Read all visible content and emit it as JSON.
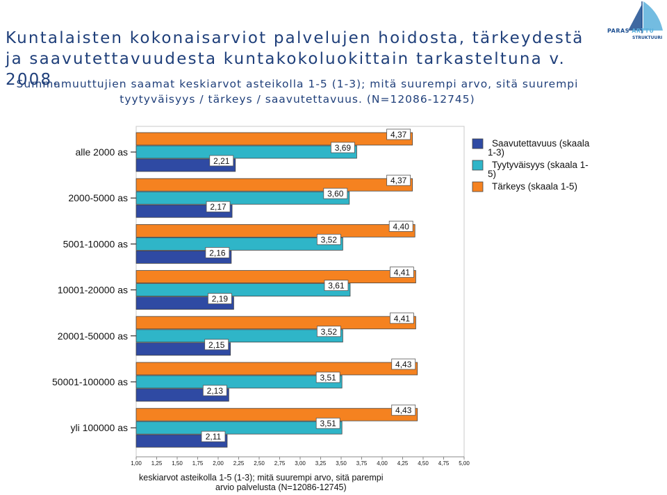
{
  "title": "Kuntalaisten kokonaisarviot palvelujen hoidosta, tärkeydestä ja saavutettavuudesta kuntakokoluokittain tarkasteltuna v. 2008.",
  "subtitle": "Summamuuttujien saamat keskiarvot asteikolla 1-5 (1-3); mitä suurempi arvo, sitä suurempi tyytyväisyys / tärkeys / saavutettavuus. (N=12086-12745)",
  "logo": {
    "brand": "PARAS",
    "name": "ARTTU",
    "sub": "STRUKTUURI"
  },
  "colors": {
    "title": "#1f3f7a",
    "saavutettavuus": "#2f4aa3",
    "tyytyvaisyys": "#2fb5c8",
    "tarkeys": "#f58220"
  },
  "chart_data": {
    "type": "bar",
    "orientation": "horizontal",
    "categories": [
      "alle 2000 as",
      "2000-5000 as",
      "5001-10000 as",
      "10001-20000 as",
      "20001-50000 as",
      "50001-100000 as",
      "yli 100000 as"
    ],
    "series": [
      {
        "name": "Tärkeys (skaala 1-5)",
        "values": [
          4.37,
          4.37,
          4.4,
          4.41,
          4.41,
          4.43,
          4.43
        ],
        "labels": [
          "4,37",
          "4,37",
          "4,40",
          "4,41",
          "4,41",
          "4,43",
          "4,43"
        ],
        "color": "#f58220"
      },
      {
        "name": "Tyytyväisyys (skaala 1-5)",
        "values": [
          3.69,
          3.6,
          3.52,
          3.61,
          3.52,
          3.51,
          3.51
        ],
        "labels": [
          "3,69",
          "3,60",
          "3,52",
          "3,61",
          "3,52",
          "3,51",
          "3,51"
        ],
        "color": "#2fb5c8"
      },
      {
        "name": "Saavutettavuus (skaala 1-3)",
        "values": [
          2.21,
          2.17,
          2.16,
          2.19,
          2.15,
          2.13,
          2.11
        ],
        "labels": [
          "2,21",
          "2,17",
          "2,16",
          "2,19",
          "2,15",
          "2,13",
          "2,11"
        ],
        "color": "#2f4aa3"
      }
    ],
    "legend": [
      {
        "name": "Saavutettavuus (skaala 1-3)",
        "lines": [
          "Saavutettavuus (skaala",
          "1-3)"
        ],
        "color": "#2f4aa3"
      },
      {
        "name": "Tyytyväisyys (skaala 1-5)",
        "lines": [
          "Tyytyväisyys (skaala 1-",
          "5)"
        ],
        "color": "#2fb5c8"
      },
      {
        "name": "Tärkeys (skaala 1-5)",
        "lines": [
          "Tärkeys (skaala 1-5)"
        ],
        "color": "#f58220"
      }
    ],
    "legend_position": "top-right",
    "xlim": [
      1.0,
      5.0
    ],
    "xticks": [
      "1,00",
      "1,25",
      "1,50",
      "1,75",
      "2,00",
      "2,25",
      "2,50",
      "2,75",
      "3,00",
      "3,25",
      "3,50",
      "3,75",
      "4,00",
      "4,25",
      "4,50",
      "4,75",
      "5,00"
    ],
    "xlabel_lines": [
      "keskiarvot asteikolla 1-5 (1-3); mitä suurempi arvo, sitä parempi",
      "arvio palvelusta (N=12086-12745)"
    ],
    "ylabel": "",
    "grid": false
  }
}
